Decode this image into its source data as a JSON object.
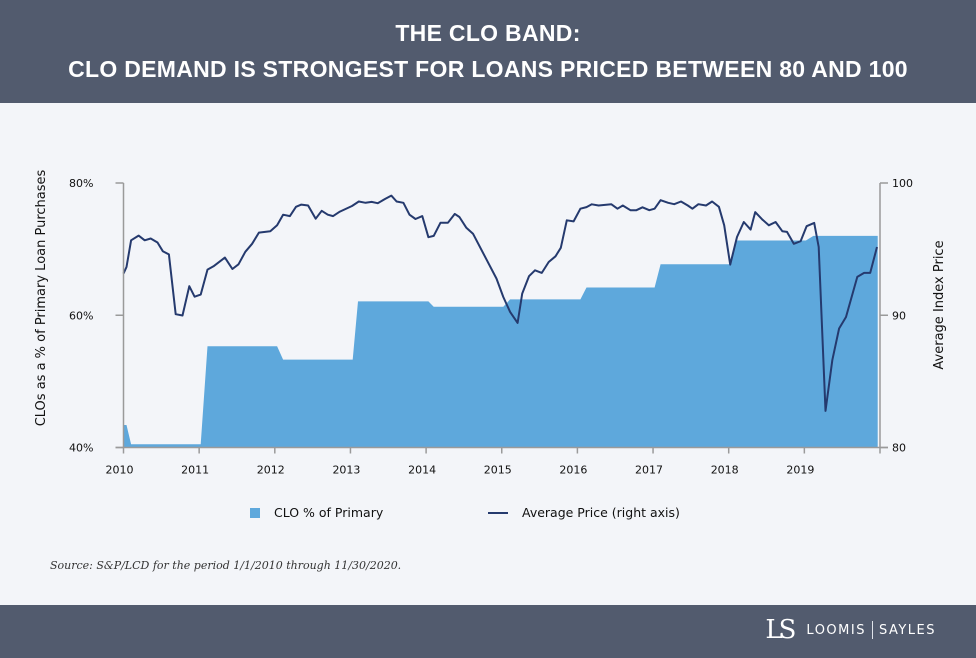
{
  "header": {
    "line1": "THE CLO BAND:",
    "line2": "CLO DEMAND IS STRONGEST FOR LOANS PRICED BETWEEN 80 AND 100"
  },
  "source": "Source:  S&P/LCD for the period 1/1/2010 through 11/30/2020.",
  "footer": {
    "logo_mark": "LS",
    "brand_left": "LOOMIS",
    "brand_right": "SAYLES"
  },
  "colors": {
    "header": "#525b6e",
    "background": "#f3f5f9",
    "area": "#5ea8dc",
    "line": "#253a6e"
  },
  "chart_data": {
    "type": "area+line",
    "grid": false,
    "legend_position": "bottom",
    "ylabel": "CLOs as a % of Primary Loan Purchases",
    "ylabel_right": "Average Index Price",
    "xlim": [
      2010,
      2020
    ],
    "ylim": [
      40,
      80
    ],
    "ylim_right": [
      80,
      100
    ],
    "x_ticks": [
      "2010",
      "2011",
      "2012",
      "2013",
      "2014",
      "2015",
      "2016",
      "2017",
      "2018",
      "2019"
    ],
    "y_ticks": [
      "80%",
      "60%",
      "40%"
    ],
    "y_ticks_right": [
      "100",
      "90",
      "80"
    ],
    "series": [
      {
        "name": "CLO % of Primary",
        "type": "area",
        "axis": "left",
        "x": [
          2010.0,
          2010.04,
          2010.1,
          2011.02,
          2011.11,
          2012.03,
          2012.11,
          2013.03,
          2013.1,
          2014.03,
          2014.1,
          2015.02,
          2015.11,
          2016.04,
          2016.12,
          2017.02,
          2017.1,
          2018.02,
          2018.11,
          2019.02,
          2019.12,
          2019.97
        ],
        "values": [
          43.4,
          43.4,
          40.5,
          40.5,
          55.3,
          55.3,
          53.3,
          53.3,
          62.1,
          62.1,
          61.3,
          61.3,
          62.4,
          62.4,
          64.2,
          64.2,
          67.7,
          67.7,
          71.3,
          71.3,
          72.0,
          72.0
        ]
      },
      {
        "name": "Average Price (right axis)",
        "type": "line",
        "axis": "right",
        "x": [
          2010.0,
          2010.04,
          2010.1,
          2010.2,
          2010.28,
          2010.36,
          2010.45,
          2010.52,
          2010.6,
          2010.69,
          2010.78,
          2010.87,
          2010.94,
          2011.02,
          2011.11,
          2011.19,
          2011.34,
          2011.44,
          2011.52,
          2011.61,
          2011.7,
          2011.79,
          2011.94,
          2012.03,
          2012.11,
          2012.2,
          2012.28,
          2012.35,
          2012.44,
          2012.54,
          2012.62,
          2012.7,
          2012.77,
          2012.86,
          2013.02,
          2013.11,
          2013.2,
          2013.28,
          2013.36,
          2013.46,
          2013.54,
          2013.61,
          2013.7,
          2013.78,
          2013.86,
          2013.95,
          2014.03,
          2014.1,
          2014.19,
          2014.29,
          2014.38,
          2014.44,
          2014.53,
          2014.62,
          2014.8,
          2014.93,
          2015.02,
          2015.11,
          2015.21,
          2015.27,
          2015.36,
          2015.44,
          2015.53,
          2015.62,
          2015.71,
          2015.78,
          2015.86,
          2015.95,
          2016.04,
          2016.12,
          2016.19,
          2016.28,
          2016.45,
          2016.53,
          2016.6,
          2016.7,
          2016.78,
          2016.86,
          2016.95,
          2017.02,
          2017.1,
          2017.2,
          2017.28,
          2017.37,
          2017.46,
          2017.52,
          2017.6,
          2017.7,
          2017.78,
          2017.87,
          2017.94,
          2018.02,
          2018.11,
          2018.2,
          2018.29,
          2018.35,
          2018.44,
          2018.53,
          2018.62,
          2018.71,
          2018.77,
          2018.86,
          2018.95,
          2019.03,
          2019.13,
          2019.19,
          2019.28,
          2019.37,
          2019.46,
          2019.55,
          2019.7,
          2019.79,
          2019.87,
          2019.96
        ],
        "values": [
          93.15,
          93.65,
          95.67,
          96.02,
          95.67,
          95.8,
          95.5,
          94.84,
          94.6,
          90.08,
          89.98,
          92.2,
          91.4,
          91.56,
          93.45,
          93.7,
          94.36,
          93.5,
          93.85,
          94.8,
          95.4,
          96.25,
          96.35,
          96.8,
          97.6,
          97.5,
          98.2,
          98.37,
          98.3,
          97.3,
          97.9,
          97.6,
          97.5,
          97.84,
          98.26,
          98.6,
          98.5,
          98.57,
          98.47,
          98.8,
          99.05,
          98.6,
          98.5,
          97.6,
          97.28,
          97.5,
          95.9,
          96.0,
          97.0,
          97.0,
          97.66,
          97.43,
          96.63,
          96.17,
          94.2,
          92.77,
          91.38,
          90.25,
          89.42,
          91.64,
          92.95,
          93.4,
          93.2,
          94.03,
          94.46,
          95.1,
          97.18,
          97.1,
          98.06,
          98.18,
          98.39,
          98.3,
          98.39,
          98.06,
          98.3,
          97.94,
          97.94,
          98.16,
          97.94,
          98.06,
          98.7,
          98.5,
          98.4,
          98.6,
          98.3,
          98.06,
          98.4,
          98.3,
          98.6,
          98.2,
          96.8,
          93.83,
          95.92,
          97.05,
          96.48,
          97.8,
          97.26,
          96.8,
          97.05,
          96.35,
          96.3,
          95.4,
          95.6,
          96.73,
          96.98,
          95.16,
          82.77,
          86.6,
          89.0,
          89.87,
          92.9,
          93.2,
          93.2,
          95.16
        ]
      }
    ]
  }
}
